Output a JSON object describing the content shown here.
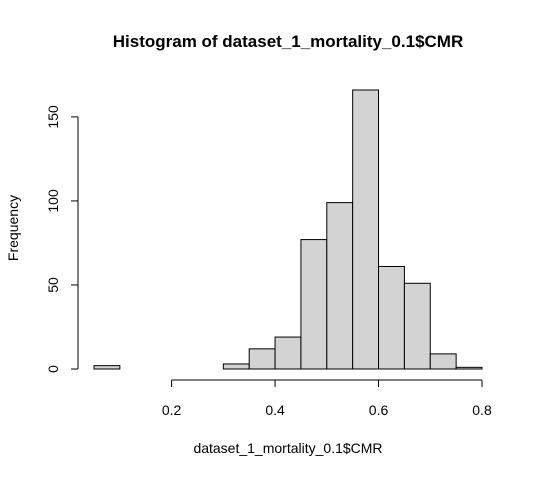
{
  "chart_data": {
    "type": "histogram",
    "title": "Histogram of dataset_1_mortality_0.1$CMR",
    "xlabel": "dataset_1_mortality_0.1$CMR",
    "ylabel": "Frequency",
    "bin_edges": [
      0.05,
      0.1,
      0.15,
      0.2,
      0.25,
      0.3,
      0.35,
      0.4,
      0.45,
      0.5,
      0.55,
      0.6,
      0.65,
      0.7,
      0.75,
      0.8
    ],
    "counts": [
      2,
      0,
      0,
      0,
      0,
      3,
      12,
      19,
      77,
      99,
      166,
      61,
      51,
      9,
      1
    ],
    "xlim": [
      0.05,
      0.8
    ],
    "ylim": [
      0,
      166
    ],
    "x_ticks": [
      0.2,
      0.4,
      0.6,
      0.8
    ],
    "x_tick_labels": [
      "0.2",
      "0.4",
      "0.6",
      "0.8"
    ],
    "y_ticks": [
      0,
      50,
      100,
      150
    ],
    "y_tick_labels": [
      "0",
      "50",
      "100",
      "150"
    ],
    "bar_fill": "#d3d3d3",
    "bar_stroke": "#000000"
  }
}
